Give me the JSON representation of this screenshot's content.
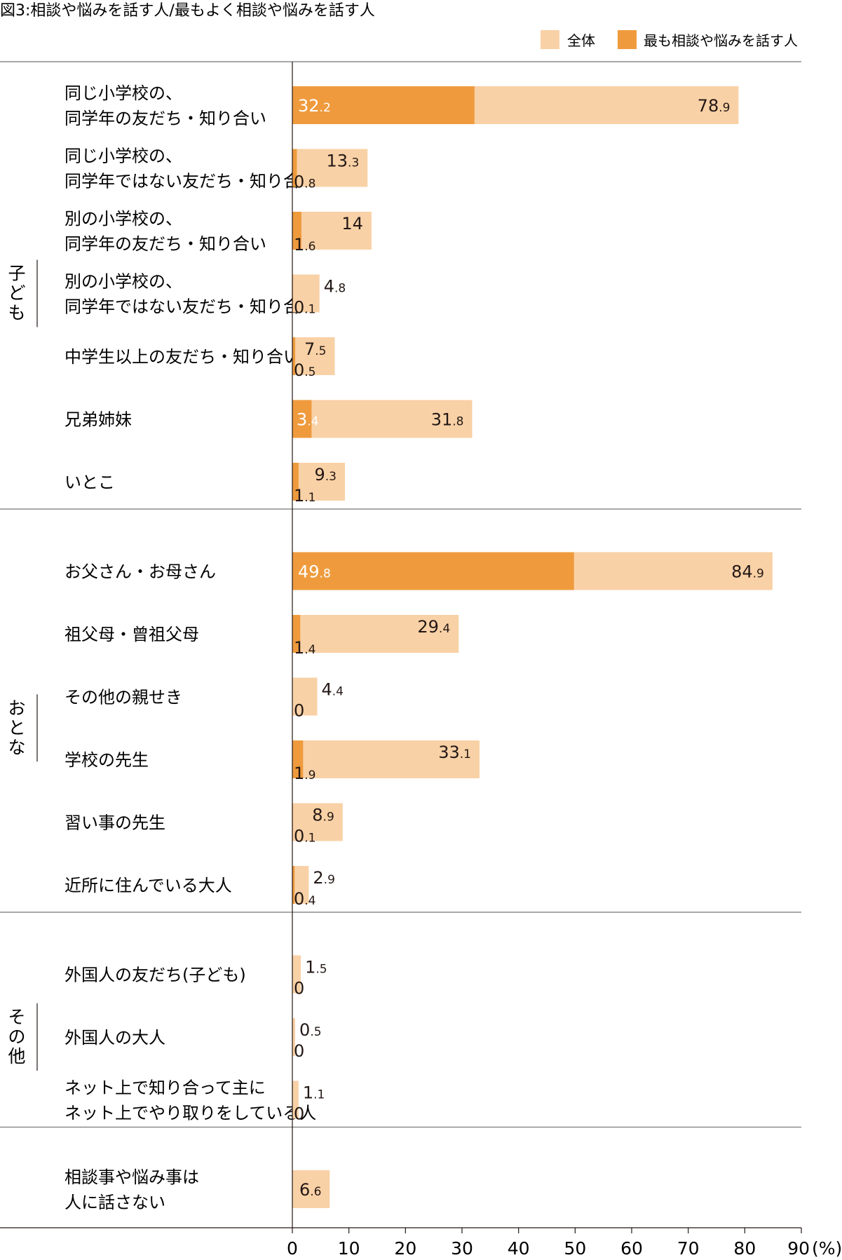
{
  "chart_data": {
    "type": "bar",
    "orientation": "horizontal",
    "title": "図3:相談や悩みを話す人/最もよく相談や悩みを話す人",
    "legend": {
      "position": "top-right",
      "entries": [
        {
          "name": "全体",
          "color": "#f9d1a6"
        },
        {
          "name": "最も相談や悩みを話す人",
          "color": "#ef9b3d"
        }
      ]
    },
    "unit_label": "(%)",
    "xlim": [
      0,
      90
    ],
    "xticks": [
      0,
      10,
      20,
      30,
      40,
      50,
      60,
      70,
      80,
      90
    ],
    "xtick_labels": [
      "0",
      "10",
      "20",
      "30",
      "40",
      "50",
      "60",
      "70",
      "80",
      "90"
    ],
    "grid": false,
    "groups": [
      {
        "name": "子ども",
        "categories": [
          {
            "label": [
              "同じ小学校の、",
              "同学年の友だち・知り合い"
            ],
            "total": 78.9,
            "most": 32.2
          },
          {
            "label": [
              "同じ小学校の、",
              "同学年ではない友だち・知り合い"
            ],
            "total": 13.3,
            "most": 0.8
          },
          {
            "label": [
              "別の小学校の、",
              "同学年の友だち・知り合い"
            ],
            "total": 14.0,
            "most": 1.6
          },
          {
            "label": [
              "別の小学校の、",
              "同学年ではない友だち・知り合い"
            ],
            "total": 4.8,
            "most": 0.1
          },
          {
            "label": [
              "中学生以上の友だち・知り合い"
            ],
            "total": 7.5,
            "most": 0.5
          },
          {
            "label": [
              "兄弟姉妹"
            ],
            "total": 31.8,
            "most": 3.4
          },
          {
            "label": [
              "いとこ"
            ],
            "total": 9.3,
            "most": 1.1
          }
        ]
      },
      {
        "name": "おとな",
        "categories": [
          {
            "label": [
              "お父さん・お母さん"
            ],
            "total": 84.9,
            "most": 49.8
          },
          {
            "label": [
              "祖父母・曾祖父母"
            ],
            "total": 29.4,
            "most": 1.4
          },
          {
            "label": [
              "その他の親せき"
            ],
            "total": 4.4,
            "most": 0
          },
          {
            "label": [
              "学校の先生"
            ],
            "total": 33.1,
            "most": 1.9
          },
          {
            "label": [
              "習い事の先生"
            ],
            "total": 8.9,
            "most": 0.1
          },
          {
            "label": [
              "近所に住んでいる大人"
            ],
            "total": 2.9,
            "most": 0.4
          }
        ]
      },
      {
        "name": "その他",
        "categories": [
          {
            "label": [
              "外国人の友だち(子ども)"
            ],
            "total": 1.5,
            "most": 0
          },
          {
            "label": [
              "外国人の大人"
            ],
            "total": 0.5,
            "most": 0
          },
          {
            "label": [
              "ネット上で知り合って主に",
              "ネット上でやり取りをしている人"
            ],
            "total": 1.1,
            "most": 0
          }
        ]
      },
      {
        "name": "",
        "categories": [
          {
            "label": [
              "相談事や悩み事は",
              "人に話さない"
            ],
            "total": 6.6,
            "most": null
          }
        ]
      }
    ]
  }
}
